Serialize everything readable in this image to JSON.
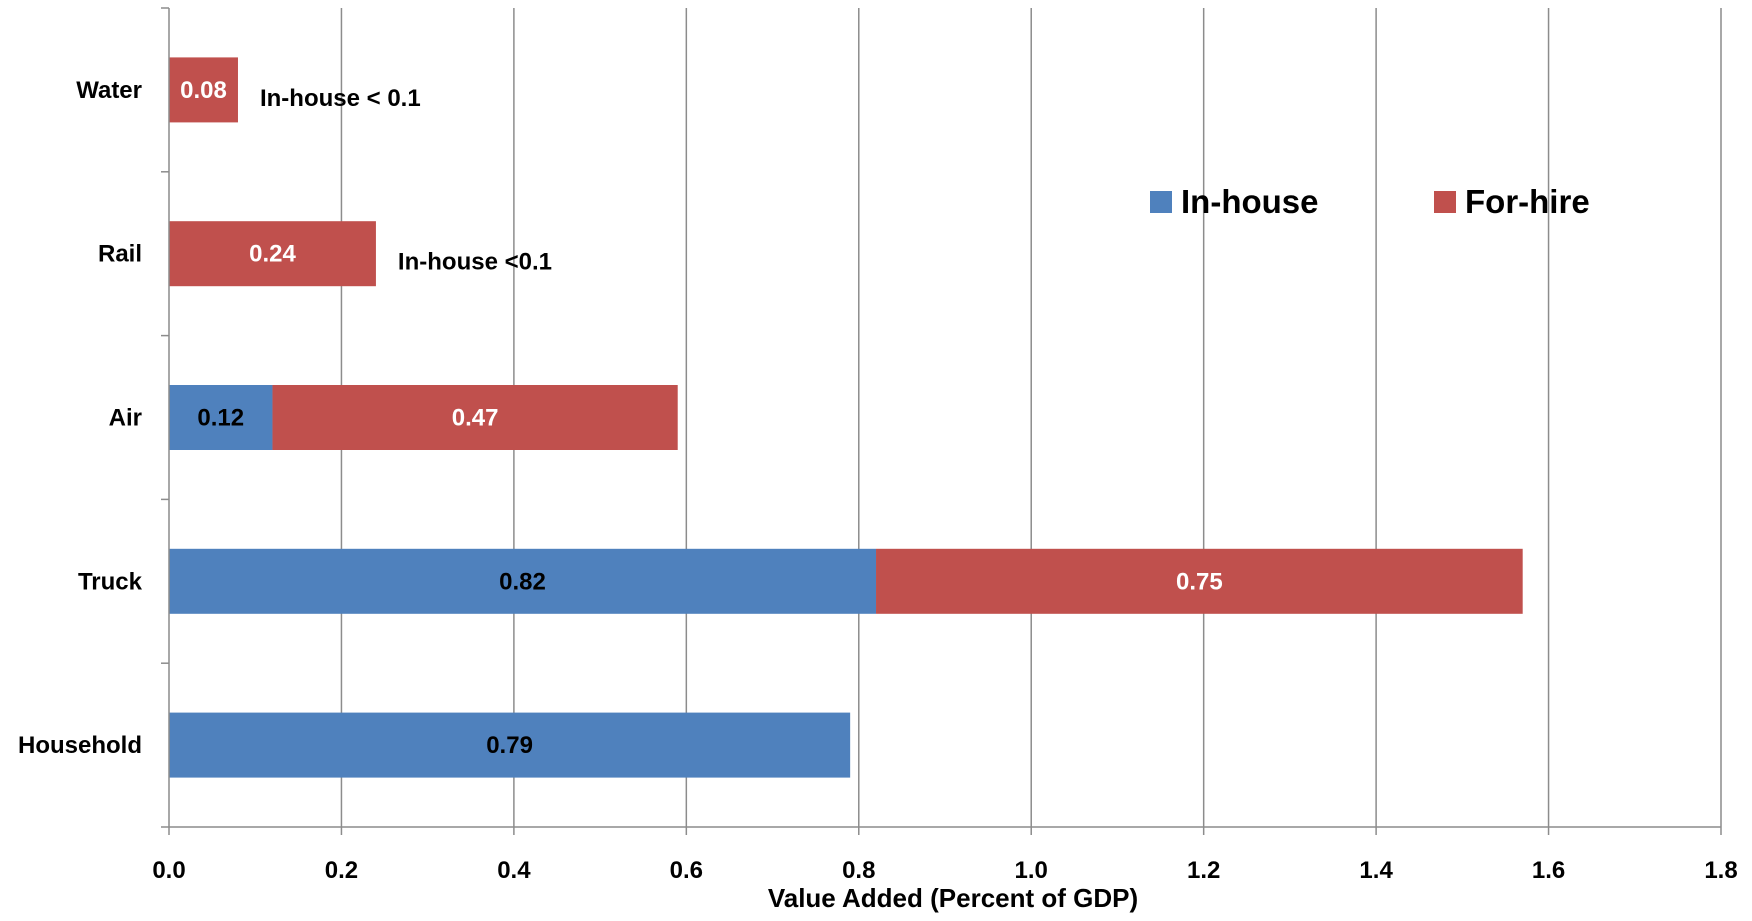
{
  "chart_data": {
    "type": "bar",
    "orientation": "horizontal",
    "stacked": true,
    "categories": [
      "Water",
      "Rail",
      "Air",
      "Truck",
      "Household"
    ],
    "series": [
      {
        "name": "In-house",
        "color": "#4F81BD",
        "values": [
          null,
          null,
          0.12,
          0.82,
          0.79
        ],
        "label_color": "#000000"
      },
      {
        "name": "For-hire",
        "color": "#C0504D",
        "values": [
          0.08,
          0.24,
          0.47,
          0.75,
          null
        ],
        "label_color": "#ffffff"
      }
    ],
    "xlabel": "Value Added (Percent of GDP)",
    "xlim": [
      0,
      1.8
    ],
    "xticks": [
      "0.0",
      "0.2",
      "0.4",
      "0.6",
      "0.8",
      "1.0",
      "1.2",
      "1.4",
      "1.6",
      "1.8"
    ],
    "grid": "vertical",
    "legend_position": "top-right",
    "annotations": [
      {
        "category": "Water",
        "text": "In-house < 0.1"
      },
      {
        "category": "Rail",
        "text": "In-house <0.1"
      }
    ]
  }
}
